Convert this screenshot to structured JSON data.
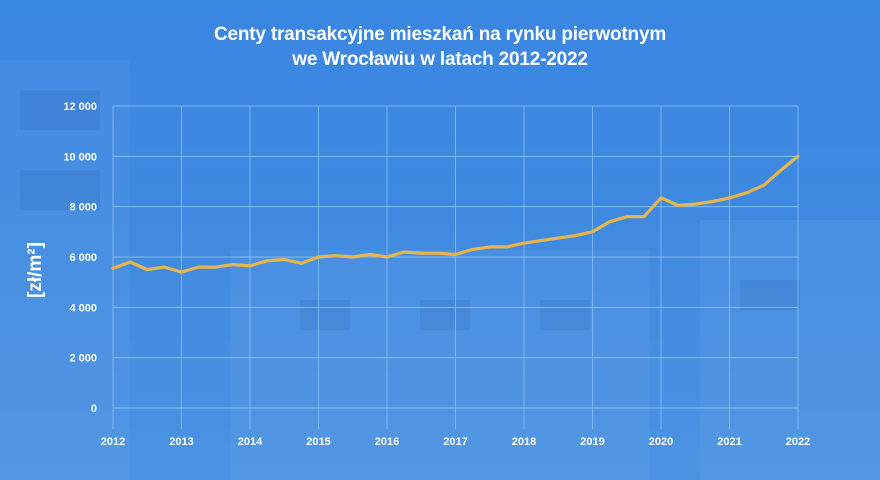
{
  "chart_data": {
    "type": "line",
    "title_line1": "Centy transakcyjne mieszkań na rynku pierwotnym",
    "title_line2": "we Wrocławiu w latach 2012-2022",
    "ylabel": "[zł/m²]",
    "xlabel": "",
    "ylim": [
      0,
      12000
    ],
    "yticks": [
      0,
      2000,
      4000,
      6000,
      8000,
      10000,
      12000
    ],
    "ytick_labels": [
      "0",
      "2 000",
      "4 000",
      "6 000",
      "8 000",
      "10 000",
      "12 000"
    ],
    "xlim": [
      2012,
      2022
    ],
    "xticks": [
      "2012",
      "2013",
      "2014",
      "2015",
      "2016",
      "2017",
      "2018",
      "2019",
      "2020",
      "2021",
      "2022"
    ],
    "grid": true,
    "line_color": "#e8b54a",
    "grid_color": "#8fc2f2",
    "series": [
      {
        "x": [
          2012.0,
          2012.25,
          2012.5,
          2012.75,
          2013.0,
          2013.25,
          2013.5,
          2013.75,
          2014.0,
          2014.25,
          2014.5,
          2014.75,
          2015.0,
          2015.25,
          2015.5,
          2015.75,
          2016.0,
          2016.25,
          2016.5,
          2016.75,
          2017.0,
          2017.25,
          2017.5,
          2017.75,
          2018.0,
          2018.25,
          2018.5,
          2018.75,
          2019.0,
          2019.25,
          2019.5,
          2019.75,
          2020.0,
          2020.25,
          2020.5,
          2020.75,
          2021.0,
          2021.25,
          2021.5,
          2021.75,
          2022.0
        ],
        "values": [
          5550,
          5800,
          5500,
          5600,
          5400,
          5600,
          5600,
          5700,
          5650,
          5850,
          5900,
          5750,
          6000,
          6050,
          6000,
          6100,
          6000,
          6200,
          6150,
          6150,
          6100,
          6300,
          6400,
          6400,
          6550,
          6650,
          6750,
          6850,
          7000,
          7400,
          7600,
          7600,
          8350,
          8050,
          8100,
          8200,
          8350,
          8550,
          8850,
          9450,
          10000
        ]
      }
    ]
  }
}
